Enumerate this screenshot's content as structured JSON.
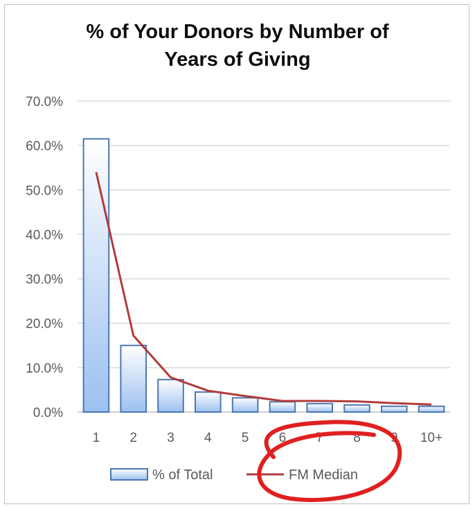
{
  "chart_data": {
    "type": "bar",
    "title": "% of Your Donors by Number of Years of Giving",
    "categories": [
      "1",
      "2",
      "3",
      "4",
      "5",
      "6",
      "7",
      "8",
      "9",
      "10+"
    ],
    "series": [
      {
        "name": "% of Total",
        "type": "bar",
        "values": [
          61.5,
          15.0,
          7.3,
          4.5,
          3.2,
          2.3,
          1.9,
          1.6,
          1.3,
          1.3
        ],
        "color": "#4a77b4"
      },
      {
        "name": "FM Median",
        "type": "line",
        "values": [
          54.0,
          17.2,
          7.8,
          4.8,
          3.6,
          2.5,
          2.5,
          2.4,
          2.0,
          1.7
        ],
        "color": "#b23b3b"
      }
    ],
    "ylim": [
      0,
      70
    ],
    "yticks": [
      "0.0%",
      "10.0%",
      "20.0%",
      "30.0%",
      "40.0%",
      "50.0%",
      "60.0%",
      "70.0%"
    ],
    "ytick_values": [
      0,
      10,
      20,
      30,
      40,
      50,
      60,
      70
    ],
    "grid": true,
    "legend": "bottom",
    "annotation": {
      "shape": "hand-drawn circle",
      "target": "FM Median",
      "color": "#e02020"
    }
  }
}
